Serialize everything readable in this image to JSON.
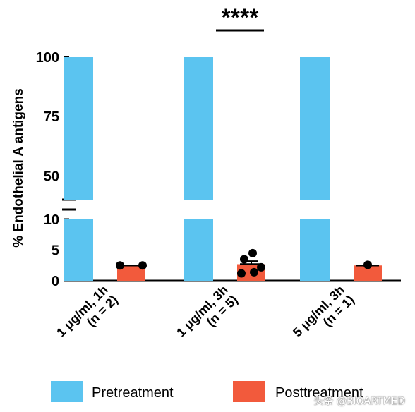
{
  "colors": {
    "pretreatment": "#5bc4f0",
    "posttreatment": "#f25a3c",
    "axis": "#000000",
    "point": "#000000"
  },
  "significance": "****",
  "watermark": "头条 @BIOARTMED",
  "chart_data": {
    "type": "bar",
    "ylabel": "% Endothelial A antigens",
    "axis_break": {
      "lower_range": [
        0,
        10
      ],
      "upper_range": [
        40,
        100
      ]
    },
    "lower_ticks": [
      0,
      5,
      10
    ],
    "upper_ticks": [
      50,
      75,
      100
    ],
    "categories": [
      {
        "line1": "1 μg/ml, 1h",
        "line2": "(n = 2)"
      },
      {
        "line1": "1 μg/ml, 3h",
        "line2": "(n = 5)"
      },
      {
        "line1": "5 μg/ml, 3h",
        "line2": "(n = 1)"
      }
    ],
    "series": [
      {
        "name": "Pretreatment",
        "values": [
          100,
          100,
          100
        ]
      },
      {
        "name": "Posttreatment",
        "values": [
          2.5,
          2.7,
          2.5
        ]
      }
    ],
    "points": [
      [
        2.5,
        2.5
      ],
      [
        4.5,
        3.5,
        2.2,
        1.2,
        1.4
      ],
      [
        2.6
      ]
    ],
    "error": [
      {
        "mean": 2.5,
        "upper": 2.5
      },
      {
        "mean": 2.7,
        "upper": 3.2
      },
      {
        "mean": 2.5,
        "upper": 2.5
      }
    ],
    "significance_group": 1,
    "legend": [
      "Pretreatment",
      "Posttreatment"
    ],
    "legend_position": "bottom",
    "grid": false
  }
}
